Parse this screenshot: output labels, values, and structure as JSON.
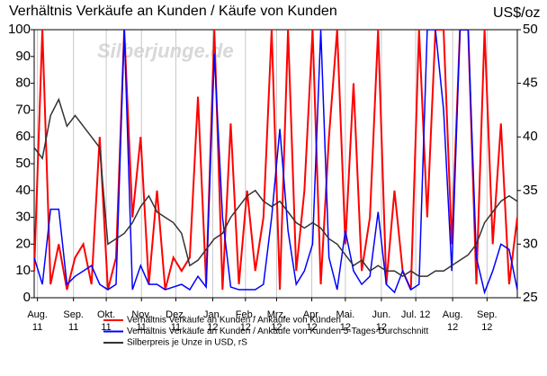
{
  "chart_data": {
    "type": "line",
    "title": "Verhältnis Verkäufe an Kunden / Käufe von Kunden",
    "y2_label": "US$/oz",
    "watermark": "Silberjunge.de",
    "xlim": [
      0,
      59
    ],
    "xticks": [
      {
        "value": 0.4,
        "label": "Aug. 11"
      },
      {
        "value": 4.8,
        "label": "Sep. 11"
      },
      {
        "value": 8.8,
        "label": "Okt. 11"
      },
      {
        "value": 13.1,
        "label": "Nov. 11"
      },
      {
        "value": 17.3,
        "label": "Dez. 11"
      },
      {
        "value": 21.8,
        "label": "Jan. 12"
      },
      {
        "value": 25.8,
        "label": "Feb. 12"
      },
      {
        "value": 29.6,
        "label": "Mrz. 12"
      },
      {
        "value": 33.9,
        "label": "Apr. 12"
      },
      {
        "value": 38.0,
        "label": "Mai. 12"
      },
      {
        "value": 42.4,
        "label": "Jun. 12"
      },
      {
        "value": 46.6,
        "label": "Jul. 12"
      },
      {
        "value": 51.1,
        "label": "Aug. 12"
      },
      {
        "value": 55.3,
        "label": "Sep. 12"
      }
    ],
    "ylim": [
      0,
      100
    ],
    "yticks": [
      0,
      10,
      20,
      30,
      40,
      50,
      60,
      70,
      80,
      90,
      100
    ],
    "y2lim": [
      25,
      50
    ],
    "y2ticks": [
      25,
      30,
      35,
      40,
      45,
      50
    ],
    "grid": true,
    "legend": "bottom",
    "series": [
      {
        "name": "Verhältnis Verkäufe an Kunden / Ankäufe von Kunden",
        "color": "#ff0000",
        "values": [
          10,
          100,
          5,
          20,
          3,
          15,
          20,
          5,
          60,
          3,
          15,
          100,
          30,
          60,
          5,
          40,
          3,
          15,
          10,
          15,
          75,
          5,
          100,
          3,
          65,
          5,
          40,
          10,
          30,
          100,
          3,
          100,
          10,
          40,
          100,
          5,
          60,
          100,
          20,
          80,
          10,
          30,
          100,
          5,
          40,
          10,
          3,
          100,
          30,
          100,
          100,
          20,
          100,
          100,
          5,
          100,
          20,
          65,
          5,
          30
        ]
      },
      {
        "name": "Verhältnis Verkäufe an Kunden / Ankäufe von Kunden 5-Tages-Durchschnitt",
        "color": "#0000ff",
        "values": [
          15,
          5,
          33,
          33,
          5,
          8,
          10,
          12,
          5,
          3,
          5,
          100,
          3,
          12,
          5,
          5,
          3,
          4,
          5,
          3,
          8,
          4,
          91,
          30,
          4,
          3,
          3,
          3,
          5,
          30,
          63,
          25,
          5,
          10,
          20,
          100,
          15,
          3,
          25,
          10,
          5,
          8,
          32,
          5,
          2,
          10,
          3,
          5,
          100,
          100,
          70,
          10,
          100,
          100,
          15,
          2,
          10,
          20,
          18,
          3
        ]
      },
      {
        "name": "Silberpreis je Unze  in USD, rS",
        "color": "#333333",
        "axis": "y2",
        "values": [
          39,
          38,
          42,
          43.5,
          41,
          42,
          41,
          40,
          39,
          30,
          30.5,
          31,
          32,
          33.5,
          34.5,
          33,
          32.5,
          32,
          31,
          28,
          28.5,
          29.5,
          30.5,
          31,
          32.5,
          33.5,
          34.5,
          35,
          34,
          33.5,
          34,
          33,
          32,
          31.5,
          32,
          31.5,
          30.5,
          30,
          29,
          28,
          28.5,
          27.5,
          28,
          27.5,
          27.5,
          27,
          27.5,
          27,
          27,
          27.5,
          27.5,
          28,
          28.5,
          29,
          30,
          32,
          33,
          34,
          34.5,
          34
        ]
      }
    ]
  }
}
